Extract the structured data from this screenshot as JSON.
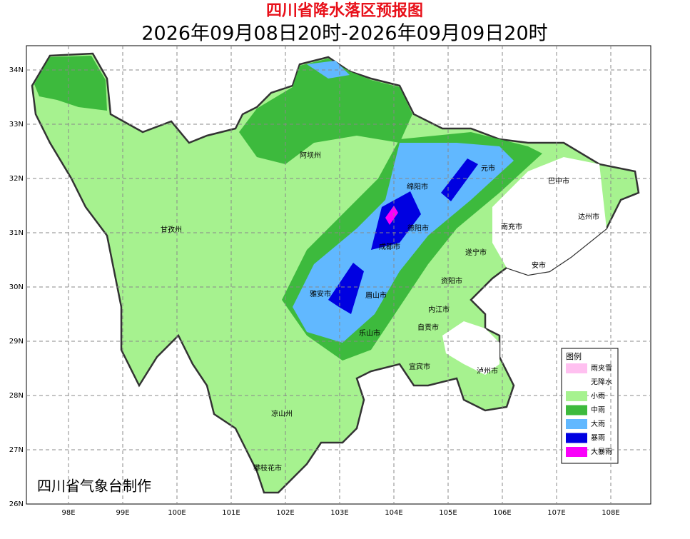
{
  "header": {
    "title": "四川省降水落区预报图",
    "subtitle": "2026年09月08日20时-2026年09月09日20时"
  },
  "axes": {
    "lat_labels": [
      "34N",
      "33N",
      "32N",
      "31N",
      "30N",
      "29N",
      "28N",
      "27N",
      "26N"
    ],
    "lon_labels": [
      "98E",
      "99E",
      "100E",
      "101E",
      "102E",
      "103E",
      "104E",
      "105E",
      "106E",
      "107E",
      "108E"
    ]
  },
  "places": [
    "阿坝州",
    "甘孜州",
    "绵阳市",
    "元市",
    "巴中市",
    "达州市",
    "南充市",
    "德阳市",
    "成都市",
    "遂宁市",
    "安市",
    "资阳市",
    "雅安市",
    "眉山市",
    "内江市",
    "乐山市",
    "自贡市",
    "宜宾市",
    "泸州市",
    "凉山州",
    "攀枝花市"
  ],
  "legend": {
    "title": "图例",
    "items": [
      "雨夹雪",
      "无降水",
      "小雨",
      "中雨",
      "大雨",
      "暴雨",
      "大暴雨"
    ]
  },
  "credit": "四川省气象台制作"
}
